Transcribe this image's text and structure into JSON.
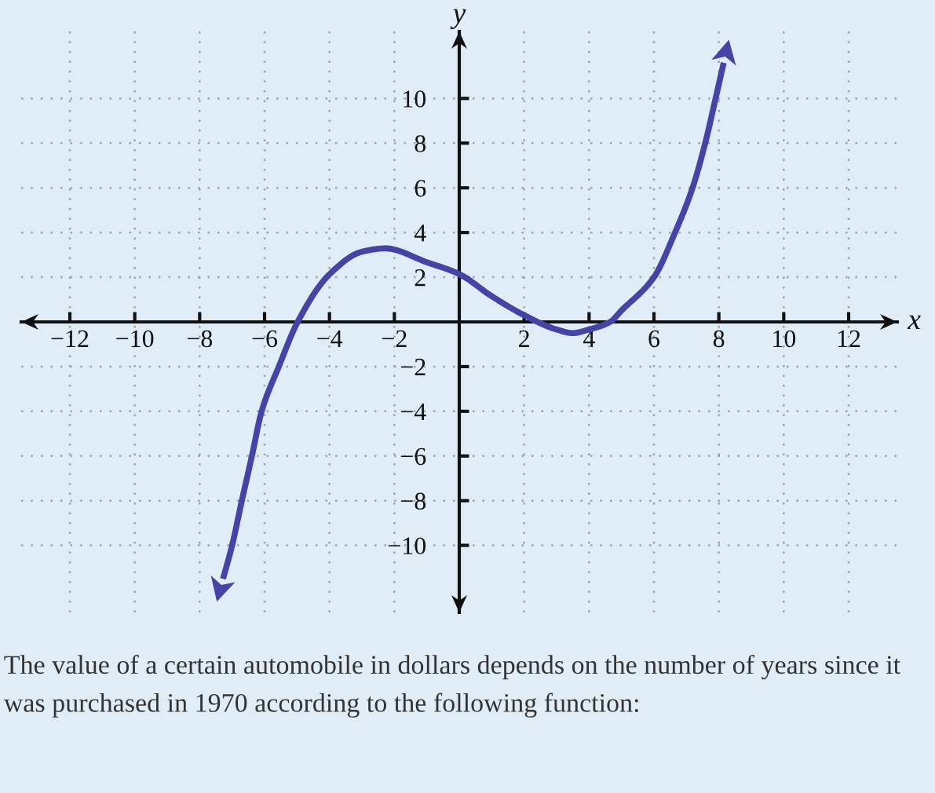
{
  "chart_data": {
    "type": "line",
    "xlabel": "x",
    "ylabel": "y",
    "x": [
      -7.28,
      -7.0,
      -6.7,
      -6.39,
      -6.09,
      -5.56,
      -4.98,
      -4.0,
      -3.0,
      -2.28,
      -1.0,
      0,
      1,
      2,
      3,
      3.5,
      4,
      4.65,
      5,
      6,
      6.65,
      7.19,
      7.58,
      7.9,
      8.15
    ],
    "series": [
      {
        "color": "#4444a4",
        "values": [
          -11.5,
          -10,
          -8,
          -6,
          -4,
          -2,
          0,
          2.13,
          3.14,
          3.29,
          2.67,
          2.14,
          1.15,
          0.3,
          -0.34,
          -0.5,
          -0.34,
          0,
          0.51,
          2.0,
          4,
          6,
          8,
          10,
          11.6
        ]
      }
    ],
    "xlim": [
      -13.5,
      13.5
    ],
    "ylim": [
      -13,
      13
    ],
    "xticks": [
      {
        "value": -12,
        "label": "−12"
      },
      {
        "value": -10,
        "label": "−10"
      },
      {
        "value": -8,
        "label": "−8"
      },
      {
        "value": -6,
        "label": "−6"
      },
      {
        "value": -4,
        "label": "−4"
      },
      {
        "value": -2,
        "label": "−2"
      },
      2,
      4,
      6,
      8,
      10,
      12
    ],
    "yticks": [
      {
        "value": -10,
        "label": "−10"
      },
      {
        "value": -8,
        "label": "−8"
      },
      {
        "value": -6,
        "label": "−6"
      },
      {
        "value": -4,
        "label": "−4"
      },
      {
        "value": -2,
        "label": "−2"
      },
      2,
      4,
      6,
      8,
      10
    ],
    "grid": true,
    "annotations": [
      "The value of a certain automobile in dollars depends on the number of years since it was purchased in 1970 according to the following function:"
    ]
  }
}
